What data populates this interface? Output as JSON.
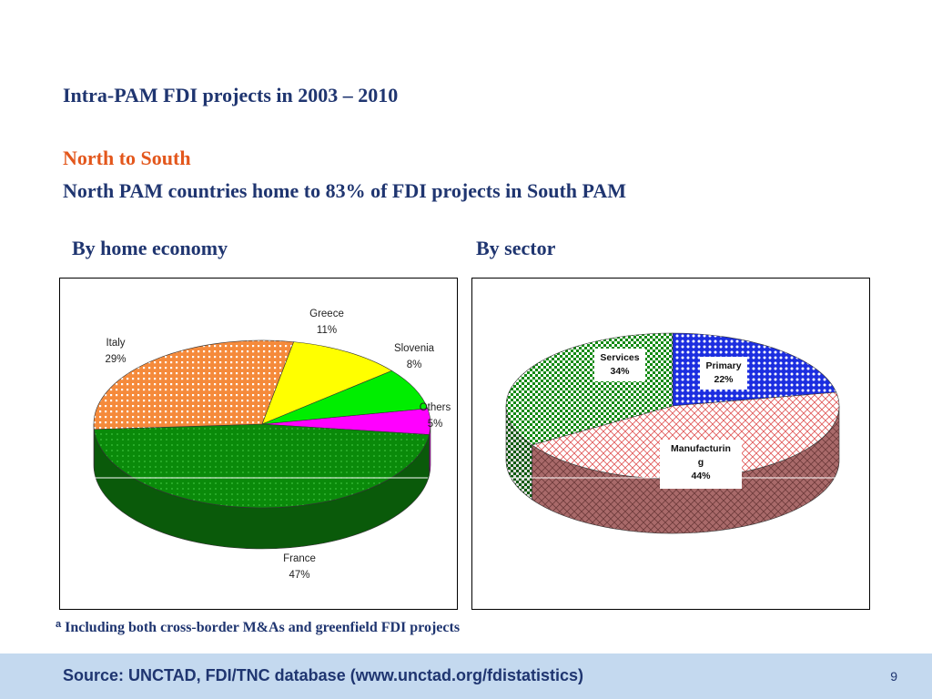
{
  "slide": {
    "title": "Intra-PAM FDI projects in 2003 – 2010",
    "subtitle_red": "North to South",
    "subtitle_blue": "North PAM countries home to 83% of FDI projects in South PAM",
    "footnote_marker": "a",
    "footnote": "Including both cross-border M&As and greenfield FDI projects",
    "source": "Source: UNCTAD, FDI/TNC database (www.unctad.org/fdistatistics)",
    "page_number": "9"
  },
  "chart_data": [
    {
      "type": "pie",
      "title": "By home economy",
      "three_d": true,
      "slices": [
        {
          "name": "France",
          "value": 47,
          "label": "47%",
          "color": "#0a8a0a",
          "dark": "#0a5a0a"
        },
        {
          "name": "Italy",
          "value": 29,
          "label": "29%",
          "color": "#f58a3b",
          "dark": "#b0561a"
        },
        {
          "name": "Greece",
          "value": 11,
          "label": "11%",
          "color": "#ffff00",
          "dark": "#b8b800"
        },
        {
          "name": "Slovenia",
          "value": 8,
          "label": "8%",
          "color": "#00ee00",
          "dark": "#00a000"
        },
        {
          "name": "Others",
          "value": 5,
          "label": "5%",
          "color": "#ff00ff",
          "dark": "#b000b0"
        }
      ]
    },
    {
      "type": "pie",
      "title": "By sector",
      "three_d": true,
      "slices": [
        {
          "name": "Manufacturin\ng",
          "value": 44,
          "label": "44%",
          "color": "#f4a7a7",
          "dark": "#a96a6a"
        },
        {
          "name": "Services",
          "value": 34,
          "label": "34%",
          "color": "#1e9a1e",
          "dark": "#116611"
        },
        {
          "name": "Primary",
          "value": 22,
          "label": "22%",
          "color": "#2030e0",
          "dark": "#101a90"
        }
      ]
    }
  ]
}
